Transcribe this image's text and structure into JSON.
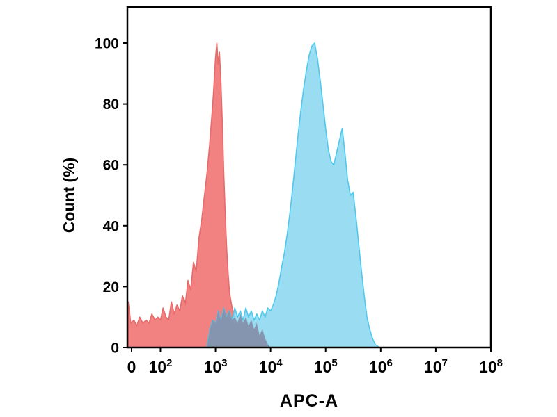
{
  "chart_data": {
    "type": "area",
    "subtype": "flow-cytometry-overlay-histogram",
    "title": "",
    "xlabel": "APC-A",
    "ylabel": "Count  (%)",
    "x_scale": "log",
    "x_tick_labels": [
      "0",
      "10^2",
      "10^3",
      "10^4",
      "10^5",
      "10^6",
      "10^7",
      "10^8"
    ],
    "y_ticks": [
      0,
      20,
      40,
      60,
      80,
      100
    ],
    "ylim": [
      0,
      100
    ],
    "grid": false,
    "legend": "none",
    "background": "#ffffff",
    "overlap_color": "#8594AF",
    "series": [
      {
        "name": "red-histogram",
        "fill": "#F28181",
        "edge": "#E96A6A",
        "opacity": 1,
        "points": [
          [
            26,
            15
          ],
          [
            29,
            8
          ],
          [
            33,
            9
          ],
          [
            37,
            7
          ],
          [
            42,
            10
          ],
          [
            48,
            8
          ],
          [
            55,
            9
          ],
          [
            62,
            8
          ],
          [
            70,
            11
          ],
          [
            80,
            9
          ],
          [
            90,
            10
          ],
          [
            100,
            9
          ],
          [
            112,
            13
          ],
          [
            126,
            10
          ],
          [
            141,
            9
          ],
          [
            158,
            15
          ],
          [
            178,
            11
          ],
          [
            200,
            14
          ],
          [
            224,
            12
          ],
          [
            251,
            17
          ],
          [
            282,
            14
          ],
          [
            316,
            22
          ],
          [
            355,
            19
          ],
          [
            398,
            28
          ],
          [
            447,
            25
          ],
          [
            501,
            36
          ],
          [
            562,
            42
          ],
          [
            631,
            50
          ],
          [
            708,
            58
          ],
          [
            794,
            68
          ],
          [
            891,
            80
          ],
          [
            950,
            88
          ],
          [
            1000,
            95
          ],
          [
            1060,
            100
          ],
          [
            1120,
            93
          ],
          [
            1180,
            97
          ],
          [
            1250,
            88
          ],
          [
            1330,
            74
          ],
          [
            1410,
            58
          ],
          [
            1500,
            44
          ],
          [
            1600,
            32
          ],
          [
            1700,
            24
          ],
          [
            1800,
            18
          ],
          [
            2000,
            13
          ],
          [
            2240,
            10
          ],
          [
            2510,
            8
          ],
          [
            2820,
            11
          ],
          [
            3160,
            8
          ],
          [
            3550,
            10
          ],
          [
            3980,
            7
          ],
          [
            4470,
            9
          ],
          [
            5010,
            6
          ],
          [
            5620,
            8
          ],
          [
            6310,
            4
          ],
          [
            7080,
            6
          ],
          [
            7940,
            3
          ],
          [
            8910,
            1
          ],
          [
            10000,
            0
          ]
        ]
      },
      {
        "name": "blue-histogram",
        "fill": "#8FD9F2",
        "edge": "#4EC9EC",
        "opacity": 0.9,
        "points": [
          [
            710,
            1
          ],
          [
            790,
            6
          ],
          [
            890,
            9
          ],
          [
            1000,
            8
          ],
          [
            1120,
            12
          ],
          [
            1260,
            9
          ],
          [
            1410,
            13
          ],
          [
            1580,
            10
          ],
          [
            1780,
            12
          ],
          [
            2000,
            9
          ],
          [
            2240,
            13
          ],
          [
            2510,
            10
          ],
          [
            2820,
            12
          ],
          [
            3160,
            9
          ],
          [
            3550,
            13
          ],
          [
            3980,
            10
          ],
          [
            4470,
            12
          ],
          [
            5010,
            9
          ],
          [
            5620,
            11
          ],
          [
            6310,
            9
          ],
          [
            7080,
            12
          ],
          [
            7940,
            10
          ],
          [
            8910,
            13
          ],
          [
            10000,
            12
          ],
          [
            11200,
            14
          ],
          [
            12600,
            17
          ],
          [
            14100,
            21
          ],
          [
            15800,
            26
          ],
          [
            17800,
            31
          ],
          [
            20000,
            37
          ],
          [
            22400,
            44
          ],
          [
            25100,
            52
          ],
          [
            28200,
            61
          ],
          [
            31600,
            70
          ],
          [
            35500,
            78
          ],
          [
            39800,
            85
          ],
          [
            44700,
            91
          ],
          [
            50100,
            96
          ],
          [
            56200,
            99
          ],
          [
            63100,
            100
          ],
          [
            70800,
            95
          ],
          [
            79400,
            88
          ],
          [
            89100,
            80
          ],
          [
            100000,
            72
          ],
          [
            112000,
            65
          ],
          [
            126000,
            61
          ],
          [
            141000,
            60
          ],
          [
            158000,
            64
          ],
          [
            178000,
            68
          ],
          [
            200000,
            72
          ],
          [
            224000,
            64
          ],
          [
            251000,
            55
          ],
          [
            282000,
            50
          ],
          [
            316000,
            51
          ],
          [
            355000,
            43
          ],
          [
            398000,
            34
          ],
          [
            447000,
            25
          ],
          [
            501000,
            17
          ],
          [
            562000,
            10
          ],
          [
            631000,
            6
          ],
          [
            708000,
            3
          ],
          [
            794000,
            1
          ],
          [
            950000,
            0
          ]
        ]
      }
    ]
  }
}
